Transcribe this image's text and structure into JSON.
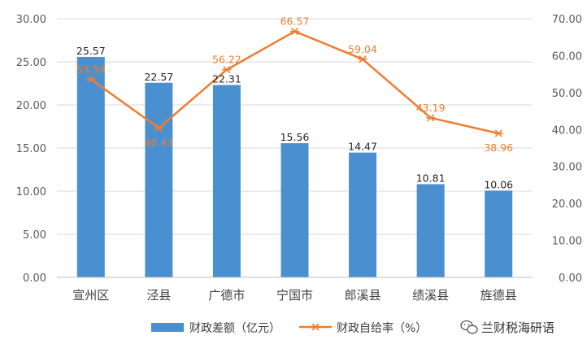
{
  "chart_data": {
    "type": "bar+line",
    "categories": [
      "宣州区",
      "泾县",
      "广德市",
      "宁国市",
      "郎溪县",
      "绩溪县",
      "旌德县"
    ],
    "series": [
      {
        "name": "财政差额（亿元）",
        "type": "bar",
        "axis": "left",
        "color": "#4A90D0",
        "values": [
          25.57,
          22.57,
          22.31,
          15.56,
          14.47,
          10.81,
          10.06
        ],
        "labels": [
          "25.57",
          "22.57",
          "22.31",
          "15.56",
          "14.47",
          "10.81",
          "10.06"
        ]
      },
      {
        "name": "财政自给率（%）",
        "type": "line",
        "axis": "right",
        "color": "#ED7D31",
        "marker": "star",
        "values": [
          53.59,
          40.43,
          56.22,
          66.57,
          59.04,
          43.19,
          38.96
        ],
        "labels": [
          "53.59",
          "40.43",
          "56.22",
          "66.57",
          "59.04",
          "43.19",
          "38.96"
        ]
      }
    ],
    "y_left": {
      "min": 0,
      "max": 30,
      "step": 5,
      "tick_labels": [
        "0.00",
        "5.00",
        "10.00",
        "15.00",
        "20.00",
        "25.00",
        "30.00"
      ]
    },
    "y_right": {
      "min": 0,
      "max": 70,
      "step": 10,
      "tick_labels": [
        "0.00",
        "10.00",
        "20.00",
        "30.00",
        "40.00",
        "50.00",
        "60.00",
        "70.00"
      ]
    },
    "grid": true,
    "legend": "bottom-center"
  },
  "watermark": {
    "text": "兰财税海研语"
  }
}
